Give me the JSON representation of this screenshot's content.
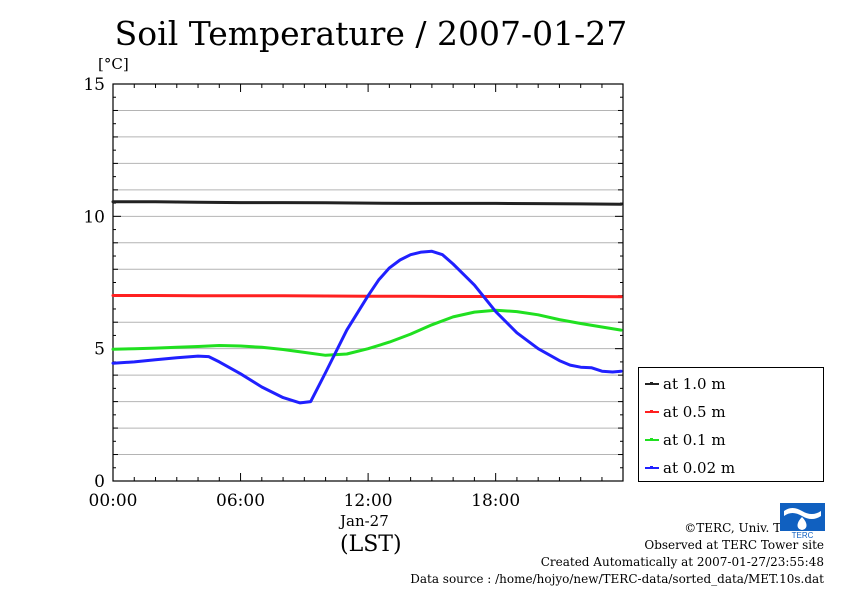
{
  "chart_data": {
    "type": "line",
    "title": "Soil Temperature / 2007-01-27",
    "ylabel": "[°C]",
    "xlabel": "(LST)",
    "date_label": "Jan-27",
    "xlim_hours": [
      0,
      23.99
    ],
    "ylim": [
      0,
      15
    ],
    "yticks": [
      0,
      5,
      10,
      15
    ],
    "xticks": [
      {
        "hour": 0,
        "label": "00:00"
      },
      {
        "hour": 6,
        "label": "06:00"
      },
      {
        "hour": 12,
        "label": "12:00"
      },
      {
        "hour": 18,
        "label": "18:00"
      }
    ],
    "grid": true,
    "legend_position": "right-bottom",
    "series": [
      {
        "name": "at 1.0 m",
        "color": "#222222",
        "x": [
          0,
          2,
          4,
          6,
          8,
          10,
          12,
          14,
          16,
          18,
          20,
          22,
          23.9
        ],
        "y": [
          10.55,
          10.55,
          10.53,
          10.52,
          10.52,
          10.51,
          10.5,
          10.49,
          10.49,
          10.49,
          10.48,
          10.47,
          10.46
        ]
      },
      {
        "name": "at 0.5 m",
        "color": "#ff2020",
        "x": [
          0,
          2,
          4,
          6,
          8,
          10,
          12,
          14,
          16,
          18,
          20,
          22,
          23.9
        ],
        "y": [
          7.01,
          7.01,
          7.0,
          7.0,
          7.0,
          6.99,
          6.98,
          6.98,
          6.97,
          6.97,
          6.97,
          6.97,
          6.96
        ]
      },
      {
        "name": "at 0.1 m",
        "color": "#20e020",
        "x": [
          0,
          1,
          2,
          3,
          4,
          5,
          6,
          7,
          8,
          9,
          10,
          11,
          12,
          13,
          14,
          15,
          16,
          17,
          18,
          19,
          20,
          21,
          22,
          23,
          23.9
        ],
        "y": [
          4.98,
          5.0,
          5.02,
          5.05,
          5.08,
          5.12,
          5.1,
          5.05,
          4.97,
          4.86,
          4.75,
          4.8,
          5.0,
          5.25,
          5.55,
          5.9,
          6.2,
          6.38,
          6.45,
          6.4,
          6.28,
          6.1,
          5.95,
          5.82,
          5.7
        ]
      },
      {
        "name": "at 0.02 m",
        "color": "#2020ff",
        "x": [
          0,
          1,
          2,
          3,
          4,
          4.5,
          5,
          6,
          7,
          8,
          8.8,
          9.3,
          10,
          11,
          12,
          12.5,
          13,
          13.5,
          14,
          14.5,
          15,
          15.5,
          16,
          16.5,
          17,
          18,
          19,
          20,
          21,
          21.5,
          22,
          22.5,
          23,
          23.5,
          23.9
        ],
        "y": [
          4.45,
          4.5,
          4.58,
          4.66,
          4.72,
          4.7,
          4.5,
          4.05,
          3.55,
          3.15,
          2.95,
          3.0,
          4.1,
          5.7,
          7.0,
          7.6,
          8.05,
          8.35,
          8.55,
          8.65,
          8.68,
          8.55,
          8.2,
          7.8,
          7.4,
          6.4,
          5.6,
          5.0,
          4.55,
          4.38,
          4.3,
          4.28,
          4.15,
          4.12,
          4.15
        ]
      }
    ]
  },
  "credits": {
    "line1": "©TERC, Univ. Tsukuba",
    "line2": "Observed at TERC Tower site",
    "line3": "Created Automatically at 2007-01-27/23:55:48",
    "line4": "Data source : /home/hojyo/new/TERC-data/sorted_data/MET.10s.dat"
  },
  "logo": {
    "text": "TERC",
    "color": "#1060c0"
  }
}
